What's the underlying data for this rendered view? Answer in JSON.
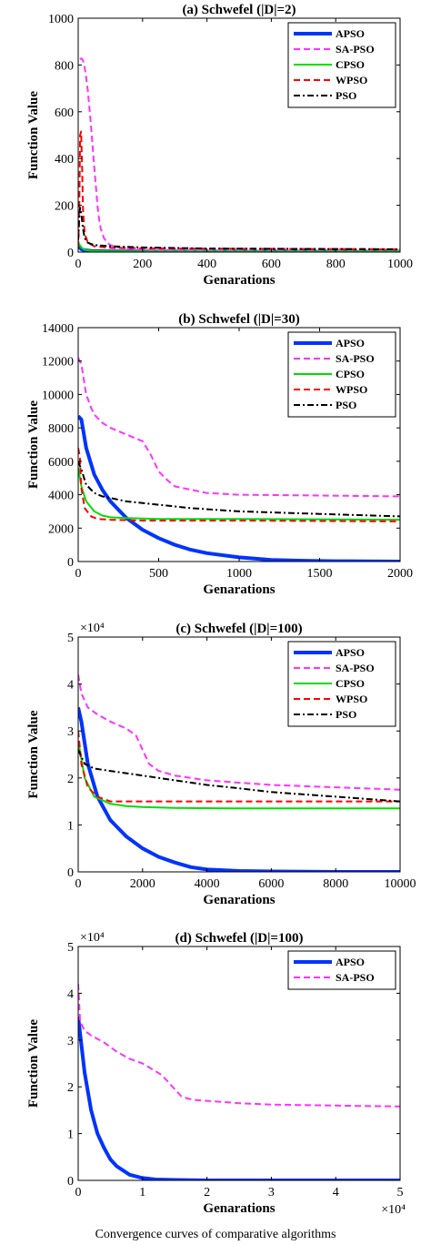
{
  "caption": "Convergence curves of comparative algorithms",
  "chart_data": [
    {
      "type": "line",
      "title": "(a) Schwefel (|D|=2)",
      "xlabel": "Genarations",
      "ylabel": "Function Value",
      "xlim": [
        0,
        1000
      ],
      "ylim": [
        0,
        1000
      ],
      "xticks": [
        "0",
        "200",
        "400",
        "600",
        "800",
        "1000"
      ],
      "yticks": [
        "0",
        "200",
        "400",
        "600",
        "800",
        "1000"
      ],
      "legend_position": "top-right",
      "grid": false,
      "series": [
        {
          "name": "APSO",
          "color": "#0033ff",
          "style": "solid",
          "width": 4,
          "x": [
            0,
            5,
            10,
            20,
            40,
            100,
            300,
            1000
          ],
          "y": [
            30,
            20,
            12,
            8,
            5,
            3,
            2,
            2
          ]
        },
        {
          "name": "SA-PSO",
          "color": "#ff33ff",
          "style": "dash",
          "width": 2,
          "x": [
            5,
            10,
            15,
            20,
            25,
            30,
            35,
            40,
            45,
            50,
            55,
            60,
            65,
            70,
            80,
            90,
            100,
            120,
            150,
            200,
            300,
            500,
            1000
          ],
          "y": [
            825,
            828,
            820,
            790,
            745,
            690,
            615,
            535,
            450,
            360,
            280,
            200,
            140,
            100,
            60,
            40,
            30,
            20,
            15,
            10,
            8,
            6,
            5
          ]
        },
        {
          "name": "CPSO",
          "color": "#00dd00",
          "style": "solid",
          "width": 2,
          "x": [
            0,
            5,
            10,
            20,
            40,
            100,
            300,
            1000
          ],
          "y": [
            40,
            30,
            20,
            10,
            5,
            3,
            2,
            2
          ]
        },
        {
          "name": "WPSO",
          "color": "#ff0000",
          "style": "dash",
          "width": 2,
          "x": [
            0,
            3,
            6,
            9,
            12,
            15,
            20,
            30,
            50,
            100,
            300,
            1000
          ],
          "y": [
            20,
            150,
            500,
            515,
            380,
            180,
            80,
            40,
            25,
            18,
            15,
            12
          ]
        },
        {
          "name": "PSO",
          "color": "#000000",
          "style": "dashdot",
          "width": 2,
          "x": [
            0,
            3,
            6,
            10,
            15,
            20,
            30,
            50,
            100,
            200,
            400,
            1000
          ],
          "y": [
            50,
            150,
            190,
            160,
            100,
            60,
            40,
            30,
            25,
            20,
            15,
            12
          ]
        }
      ]
    },
    {
      "type": "line",
      "title": "(b) Schwefel (|D|=30)",
      "xlabel": "Genarations",
      "ylabel": "Function Value",
      "xlim": [
        0,
        2000
      ],
      "ylim": [
        0,
        14000
      ],
      "xticks": [
        "0",
        "500",
        "1000",
        "1500",
        "2000"
      ],
      "yticks": [
        "0",
        "2000",
        "4000",
        "6000",
        "8000",
        "10000",
        "12000",
        "14000"
      ],
      "legend_position": "top-right",
      "grid": false,
      "series": [
        {
          "name": "APSO",
          "color": "#0033ff",
          "style": "solid",
          "width": 4,
          "x": [
            0,
            20,
            50,
            100,
            150,
            200,
            300,
            400,
            500,
            600,
            700,
            800,
            1000,
            1200,
            1400,
            1600,
            2000
          ],
          "y": [
            8700,
            8500,
            6800,
            5200,
            4300,
            3600,
            2600,
            1900,
            1400,
            1000,
            700,
            500,
            250,
            100,
            50,
            20,
            0
          ]
        },
        {
          "name": "SA-PSO",
          "color": "#ff33ff",
          "style": "dash",
          "width": 2,
          "x": [
            0,
            20,
            50,
            80,
            100,
            150,
            200,
            300,
            400,
            450,
            500,
            550,
            600,
            700,
            800,
            1000,
            1500,
            2000
          ],
          "y": [
            12200,
            11800,
            10000,
            9200,
            8800,
            8300,
            8000,
            7600,
            7200,
            6400,
            5400,
            4900,
            4500,
            4300,
            4100,
            4000,
            3950,
            3900
          ]
        },
        {
          "name": "CPSO",
          "color": "#00dd00",
          "style": "solid",
          "width": 2,
          "x": [
            0,
            20,
            50,
            100,
            150,
            200,
            300,
            500,
            1000,
            2000
          ],
          "y": [
            5600,
            4500,
            3600,
            3000,
            2750,
            2650,
            2600,
            2550,
            2550,
            2500
          ]
        },
        {
          "name": "WPSO",
          "color": "#ff0000",
          "style": "dash",
          "width": 2,
          "x": [
            0,
            10,
            20,
            40,
            80,
            120,
            200,
            400,
            1000,
            2000
          ],
          "y": [
            6800,
            6300,
            4400,
            3200,
            2700,
            2550,
            2500,
            2450,
            2450,
            2400
          ]
        },
        {
          "name": "PSO",
          "color": "#000000",
          "style": "dashdot",
          "width": 2,
          "x": [
            0,
            20,
            50,
            100,
            150,
            200,
            300,
            500,
            700,
            1000,
            1500,
            2000
          ],
          "y": [
            6000,
            5500,
            4600,
            4100,
            3900,
            3800,
            3600,
            3400,
            3200,
            3000,
            2850,
            2700
          ]
        }
      ]
    },
    {
      "type": "line",
      "title": "(c) Schwefel (|D|=100)",
      "xlabel": "Genarations",
      "ylabel": "Function Value",
      "multiplier": "×10⁴",
      "xlim": [
        0,
        10000
      ],
      "ylim": [
        0,
        5
      ],
      "xticks": [
        "0",
        "2000",
        "4000",
        "6000",
        "8000",
        "10000"
      ],
      "yticks": [
        "0",
        "1",
        "2",
        "3",
        "4",
        "5"
      ],
      "legend_position": "top-right",
      "grid": false,
      "series": [
        {
          "name": "APSO",
          "color": "#0033ff",
          "style": "solid",
          "width": 4,
          "x": [
            0,
            100,
            300,
            600,
            1000,
            1500,
            2000,
            2500,
            3000,
            3500,
            4000,
            5000,
            6000,
            8000,
            10000
          ],
          "y": [
            3.5,
            3.2,
            2.3,
            1.6,
            1.1,
            0.75,
            0.5,
            0.32,
            0.2,
            0.1,
            0.05,
            0.02,
            0.01,
            0,
            0
          ]
        },
        {
          "name": "SA-PSO",
          "color": "#ff33ff",
          "style": "dash",
          "width": 2,
          "x": [
            0,
            100,
            300,
            600,
            1000,
            1500,
            1800,
            2000,
            2200,
            2500,
            3000,
            4000,
            5000,
            6000,
            8000,
            10000
          ],
          "y": [
            4.2,
            3.8,
            3.5,
            3.35,
            3.2,
            3.05,
            2.9,
            2.6,
            2.3,
            2.15,
            2.05,
            1.95,
            1.9,
            1.85,
            1.8,
            1.75
          ]
        },
        {
          "name": "CPSO",
          "color": "#00dd00",
          "style": "solid",
          "width": 2,
          "x": [
            0,
            200,
            500,
            1000,
            1500,
            2000,
            3000,
            5000,
            10000
          ],
          "y": [
            2.8,
            2.0,
            1.6,
            1.45,
            1.4,
            1.38,
            1.36,
            1.35,
            1.35
          ]
        },
        {
          "name": "WPSO",
          "color": "#ff0000",
          "style": "dash",
          "width": 2,
          "x": [
            0,
            100,
            300,
            600,
            1000,
            1500,
            2000,
            4000,
            6000,
            10000
          ],
          "y": [
            3.0,
            2.3,
            1.8,
            1.6,
            1.5,
            1.5,
            1.5,
            1.5,
            1.5,
            1.5
          ]
        },
        {
          "name": "PSO",
          "color": "#000000",
          "style": "dashdot",
          "width": 2,
          "x": [
            0,
            200,
            500,
            1000,
            2000,
            3000,
            4000,
            5000,
            6000,
            8000,
            10000
          ],
          "y": [
            2.6,
            2.3,
            2.2,
            2.15,
            2.05,
            1.95,
            1.85,
            1.78,
            1.7,
            1.6,
            1.5
          ]
        }
      ]
    },
    {
      "type": "line",
      "title": "(d) Schwefel (|D|=100)",
      "xlabel": "Genarations",
      "ylabel": "Function Value",
      "multiplier": "×10⁴",
      "x_multiplier": "×10⁴",
      "xlim": [
        0,
        5
      ],
      "ylim": [
        0,
        5
      ],
      "xticks": [
        "0",
        "1",
        "2",
        "3",
        "4",
        "5"
      ],
      "yticks": [
        "0",
        "1",
        "2",
        "3",
        "4",
        "5"
      ],
      "legend_position": "top-right",
      "grid": false,
      "series": [
        {
          "name": "APSO",
          "color": "#0033ff",
          "style": "solid",
          "width": 4,
          "x": [
            0,
            0.05,
            0.1,
            0.2,
            0.3,
            0.4,
            0.5,
            0.6,
            0.8,
            1.0,
            1.2,
            1.5,
            2,
            3,
            4,
            5
          ],
          "y": [
            3.5,
            2.9,
            2.3,
            1.5,
            1.0,
            0.7,
            0.45,
            0.3,
            0.12,
            0.05,
            0.02,
            0.01,
            0,
            0,
            0,
            0
          ]
        },
        {
          "name": "SA-PSO",
          "color": "#ff33ff",
          "style": "dash",
          "width": 2,
          "x": [
            0,
            0.03,
            0.1,
            0.2,
            0.4,
            0.6,
            0.8,
            1.0,
            1.3,
            1.5,
            1.6,
            1.7,
            1.8,
            2.0,
            2.5,
            3,
            4,
            5
          ],
          "y": [
            4.2,
            3.4,
            3.2,
            3.1,
            2.95,
            2.75,
            2.6,
            2.5,
            2.25,
            1.95,
            1.8,
            1.75,
            1.72,
            1.7,
            1.65,
            1.62,
            1.6,
            1.58
          ]
        }
      ]
    }
  ]
}
